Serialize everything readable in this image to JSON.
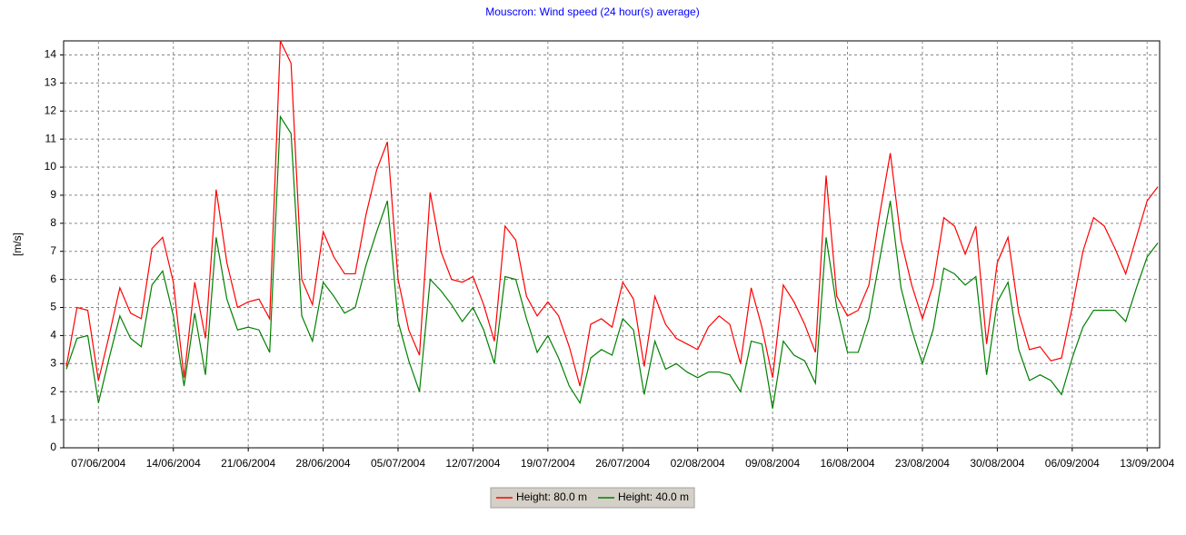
{
  "chart_data": {
    "type": "line",
    "title": "Mouscron: Wind speed (24 hour(s) average)",
    "y_label": "[m/s]",
    "x": [
      "2004-06-04",
      "2004-06-05",
      "2004-06-06",
      "2004-06-07",
      "2004-06-08",
      "2004-06-09",
      "2004-06-10",
      "2004-06-11",
      "2004-06-12",
      "2004-06-13",
      "2004-06-14",
      "2004-06-15",
      "2004-06-16",
      "2004-06-17",
      "2004-06-18",
      "2004-06-19",
      "2004-06-20",
      "2004-06-21",
      "2004-06-22",
      "2004-06-23",
      "2004-06-24",
      "2004-06-25",
      "2004-06-26",
      "2004-06-27",
      "2004-06-28",
      "2004-06-29",
      "2004-06-30",
      "2004-07-01",
      "2004-07-02",
      "2004-07-03",
      "2004-07-04",
      "2004-07-05",
      "2004-07-06",
      "2004-07-07",
      "2004-07-08",
      "2004-07-09",
      "2004-07-10",
      "2004-07-11",
      "2004-07-12",
      "2004-07-13",
      "2004-07-14",
      "2004-07-15",
      "2004-07-16",
      "2004-07-17",
      "2004-07-18",
      "2004-07-19",
      "2004-07-20",
      "2004-07-21",
      "2004-07-22",
      "2004-07-23",
      "2004-07-24",
      "2004-07-25",
      "2004-07-26",
      "2004-07-27",
      "2004-07-28",
      "2004-07-29",
      "2004-07-30",
      "2004-07-31",
      "2004-08-01",
      "2004-08-02",
      "2004-08-03",
      "2004-08-04",
      "2004-08-05",
      "2004-08-06",
      "2004-08-07",
      "2004-08-08",
      "2004-08-09",
      "2004-08-10",
      "2004-08-11",
      "2004-08-12",
      "2004-08-13",
      "2004-08-14",
      "2004-08-15",
      "2004-08-16",
      "2004-08-17",
      "2004-08-18",
      "2004-08-19",
      "2004-08-20",
      "2004-08-21",
      "2004-08-22",
      "2004-08-23",
      "2004-08-24",
      "2004-08-25",
      "2004-08-26",
      "2004-08-27",
      "2004-08-28",
      "2004-08-29",
      "2004-08-30",
      "2004-08-31",
      "2004-09-01",
      "2004-09-02",
      "2004-09-03",
      "2004-09-04",
      "2004-09-05",
      "2004-09-06",
      "2004-09-07",
      "2004-09-08",
      "2004-09-09",
      "2004-09-10",
      "2004-09-11",
      "2004-09-12",
      "2004-09-13",
      "2004-09-14"
    ],
    "series": [
      {
        "name": "Height: 80.0 m",
        "color": "#ff0000",
        "values": [
          2.9,
          5.0,
          4.9,
          2.4,
          4.0,
          5.7,
          4.8,
          4.6,
          7.1,
          7.5,
          5.9,
          2.5,
          5.9,
          3.9,
          9.2,
          6.6,
          5.0,
          5.2,
          5.3,
          4.6,
          14.5,
          13.7,
          6.0,
          5.1,
          7.7,
          6.8,
          6.2,
          6.2,
          8.3,
          9.9,
          10.9,
          6.0,
          4.2,
          3.3,
          9.1,
          7.0,
          6.0,
          5.9,
          6.1,
          5.1,
          3.8,
          7.9,
          7.4,
          5.4,
          4.7,
          5.2,
          4.7,
          3.6,
          2.2,
          4.4,
          4.6,
          4.3,
          5.9,
          5.3,
          2.9,
          5.4,
          4.4,
          3.9,
          3.7,
          3.5,
          4.3,
          4.7,
          4.4,
          3.0,
          5.7,
          4.3,
          2.5,
          5.8,
          5.2,
          4.4,
          3.4,
          9.7,
          5.4,
          4.7,
          4.9,
          5.8,
          8.3,
          10.5,
          7.4,
          5.8,
          4.6,
          5.8,
          8.2,
          7.9,
          6.9,
          7.9,
          3.7,
          6.6,
          7.5,
          4.8,
          3.5,
          3.6,
          3.1,
          3.2,
          5.0,
          7.0,
          8.2,
          7.9,
          7.1,
          6.2,
          7.5,
          8.8,
          9.3
        ]
      },
      {
        "name": "Height: 40.0 m",
        "color": "#008000",
        "values": [
          2.8,
          3.9,
          4.0,
          1.6,
          3.2,
          4.7,
          3.9,
          3.6,
          5.8,
          6.3,
          4.7,
          2.2,
          4.8,
          2.6,
          7.5,
          5.3,
          4.2,
          4.3,
          4.2,
          3.4,
          11.8,
          11.2,
          4.7,
          3.8,
          5.9,
          5.4,
          4.8,
          5.0,
          6.5,
          7.7,
          8.8,
          4.5,
          3.1,
          2.0,
          6.0,
          5.6,
          5.1,
          4.5,
          5.0,
          4.2,
          3.0,
          6.1,
          6.0,
          4.6,
          3.4,
          4.0,
          3.2,
          2.2,
          1.6,
          3.2,
          3.5,
          3.3,
          4.6,
          4.2,
          1.9,
          3.8,
          2.8,
          3.0,
          2.7,
          2.5,
          2.7,
          2.7,
          2.6,
          2.0,
          3.8,
          3.7,
          1.4,
          3.8,
          3.3,
          3.1,
          2.3,
          7.5,
          5.0,
          3.4,
          3.4,
          4.6,
          6.7,
          8.8,
          5.7,
          4.2,
          3.0,
          4.2,
          6.4,
          6.2,
          5.8,
          6.1,
          2.6,
          5.2,
          5.9,
          3.5,
          2.4,
          2.6,
          2.4,
          1.9,
          3.2,
          4.3,
          4.9,
          4.9,
          4.9,
          4.5,
          5.7,
          6.8,
          7.3
        ]
      }
    ],
    "xlim": [
      "2004-06-04",
      "2004-09-14"
    ],
    "xticks": [
      {
        "value": "2004-06-07",
        "label": "07/06/2004"
      },
      {
        "value": "2004-06-14",
        "label": "14/06/2004"
      },
      {
        "value": "2004-06-21",
        "label": "21/06/2004"
      },
      {
        "value": "2004-06-28",
        "label": "28/06/2004"
      },
      {
        "value": "2004-07-05",
        "label": "05/07/2004"
      },
      {
        "value": "2004-07-12",
        "label": "12/07/2004"
      },
      {
        "value": "2004-07-19",
        "label": "19/07/2004"
      },
      {
        "value": "2004-07-26",
        "label": "26/07/2004"
      },
      {
        "value": "2004-08-02",
        "label": "02/08/2004"
      },
      {
        "value": "2004-08-09",
        "label": "09/08/2004"
      },
      {
        "value": "2004-08-16",
        "label": "16/08/2004"
      },
      {
        "value": "2004-08-23",
        "label": "23/08/2004"
      },
      {
        "value": "2004-08-30",
        "label": "30/08/2004"
      },
      {
        "value": "2004-09-06",
        "label": "06/09/2004"
      },
      {
        "value": "2004-09-13",
        "label": "13/09/2004"
      }
    ],
    "ylim": [
      0,
      14.5
    ],
    "yticks": [
      0,
      1,
      2,
      3,
      4,
      5,
      6,
      7,
      8,
      9,
      10,
      11,
      12,
      13,
      14
    ],
    "grid": true,
    "legend": "bottom"
  }
}
